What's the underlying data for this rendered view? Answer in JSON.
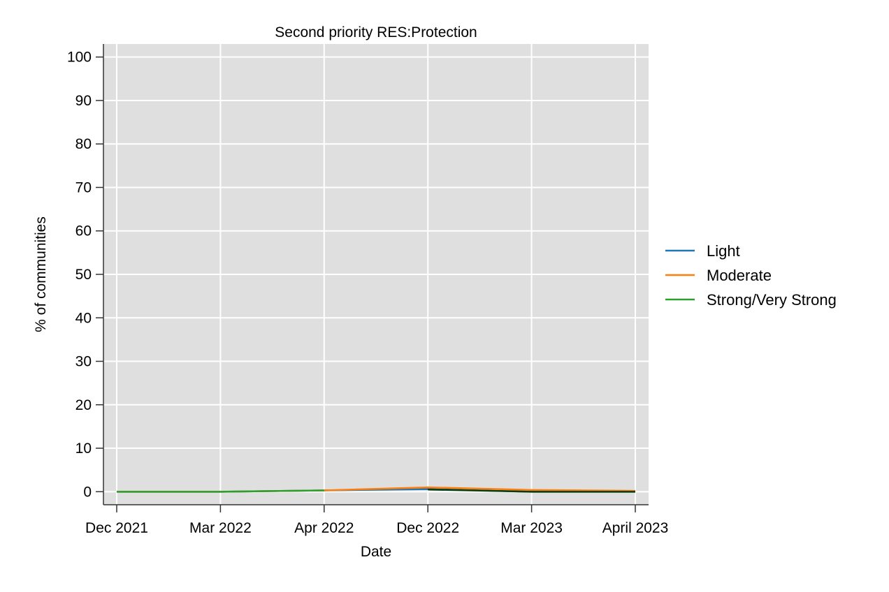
{
  "chart_data": {
    "type": "line",
    "title": "Second priority RES:Protection",
    "xlabel": "Date",
    "ylabel": "% of communities",
    "x": [
      "Dec 2021",
      "Mar 2022",
      "Apr 2022",
      "Dec 2022",
      "Mar 2023",
      "April 2023"
    ],
    "ylim": [
      -3,
      103
    ],
    "yticks": [
      0,
      10,
      20,
      30,
      40,
      50,
      60,
      70,
      80,
      90,
      100
    ],
    "grid": true,
    "legend_position": "right",
    "series": [
      {
        "name": "Light",
        "color": "#1f77b4",
        "values": [
          0,
          0,
          0.3,
          0.6,
          0,
          0
        ]
      },
      {
        "name": "Moderate",
        "color": "#ff7f0e",
        "values": [
          0,
          0,
          0.3,
          1.0,
          0.4,
          0.2
        ]
      },
      {
        "name": "Strong/Very Strong",
        "color": "#2ca02c",
        "values": [
          0,
          0,
          0.3,
          null,
          null,
          null
        ]
      }
    ],
    "extra_lines": [
      {
        "color": "#0b3d0b",
        "values": [
          null,
          null,
          null,
          0.5,
          0,
          0
        ]
      }
    ]
  }
}
